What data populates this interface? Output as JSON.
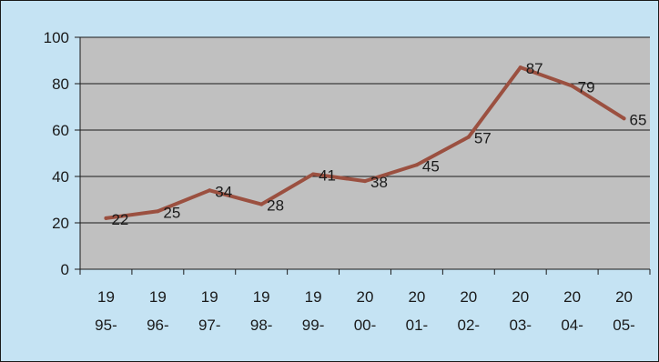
{
  "chart_data": {
    "type": "line",
    "title": "",
    "xlabel": "",
    "ylabel": "",
    "ylim": [
      0,
      100
    ],
    "yticks": [
      0,
      20,
      40,
      60,
      80,
      100
    ],
    "grid": true,
    "categories": [
      [
        "19",
        "95-"
      ],
      [
        "19",
        "96-"
      ],
      [
        "19",
        "97-"
      ],
      [
        "19",
        "98-"
      ],
      [
        "19",
        "99-"
      ],
      [
        "20",
        "00-"
      ],
      [
        "20",
        "01-"
      ],
      [
        "20",
        "02-"
      ],
      [
        "20",
        "03-"
      ],
      [
        "20",
        "04-"
      ],
      [
        "20",
        "05-"
      ]
    ],
    "series": [
      {
        "values": [
          22,
          25,
          34,
          28,
          41,
          38,
          45,
          57,
          87,
          79,
          65
        ]
      }
    ],
    "colors": {
      "background": "#c5e3f3",
      "plot_area": "#c0c0c0",
      "line": "#9b5040",
      "gridline": "#1a1a1a"
    }
  }
}
